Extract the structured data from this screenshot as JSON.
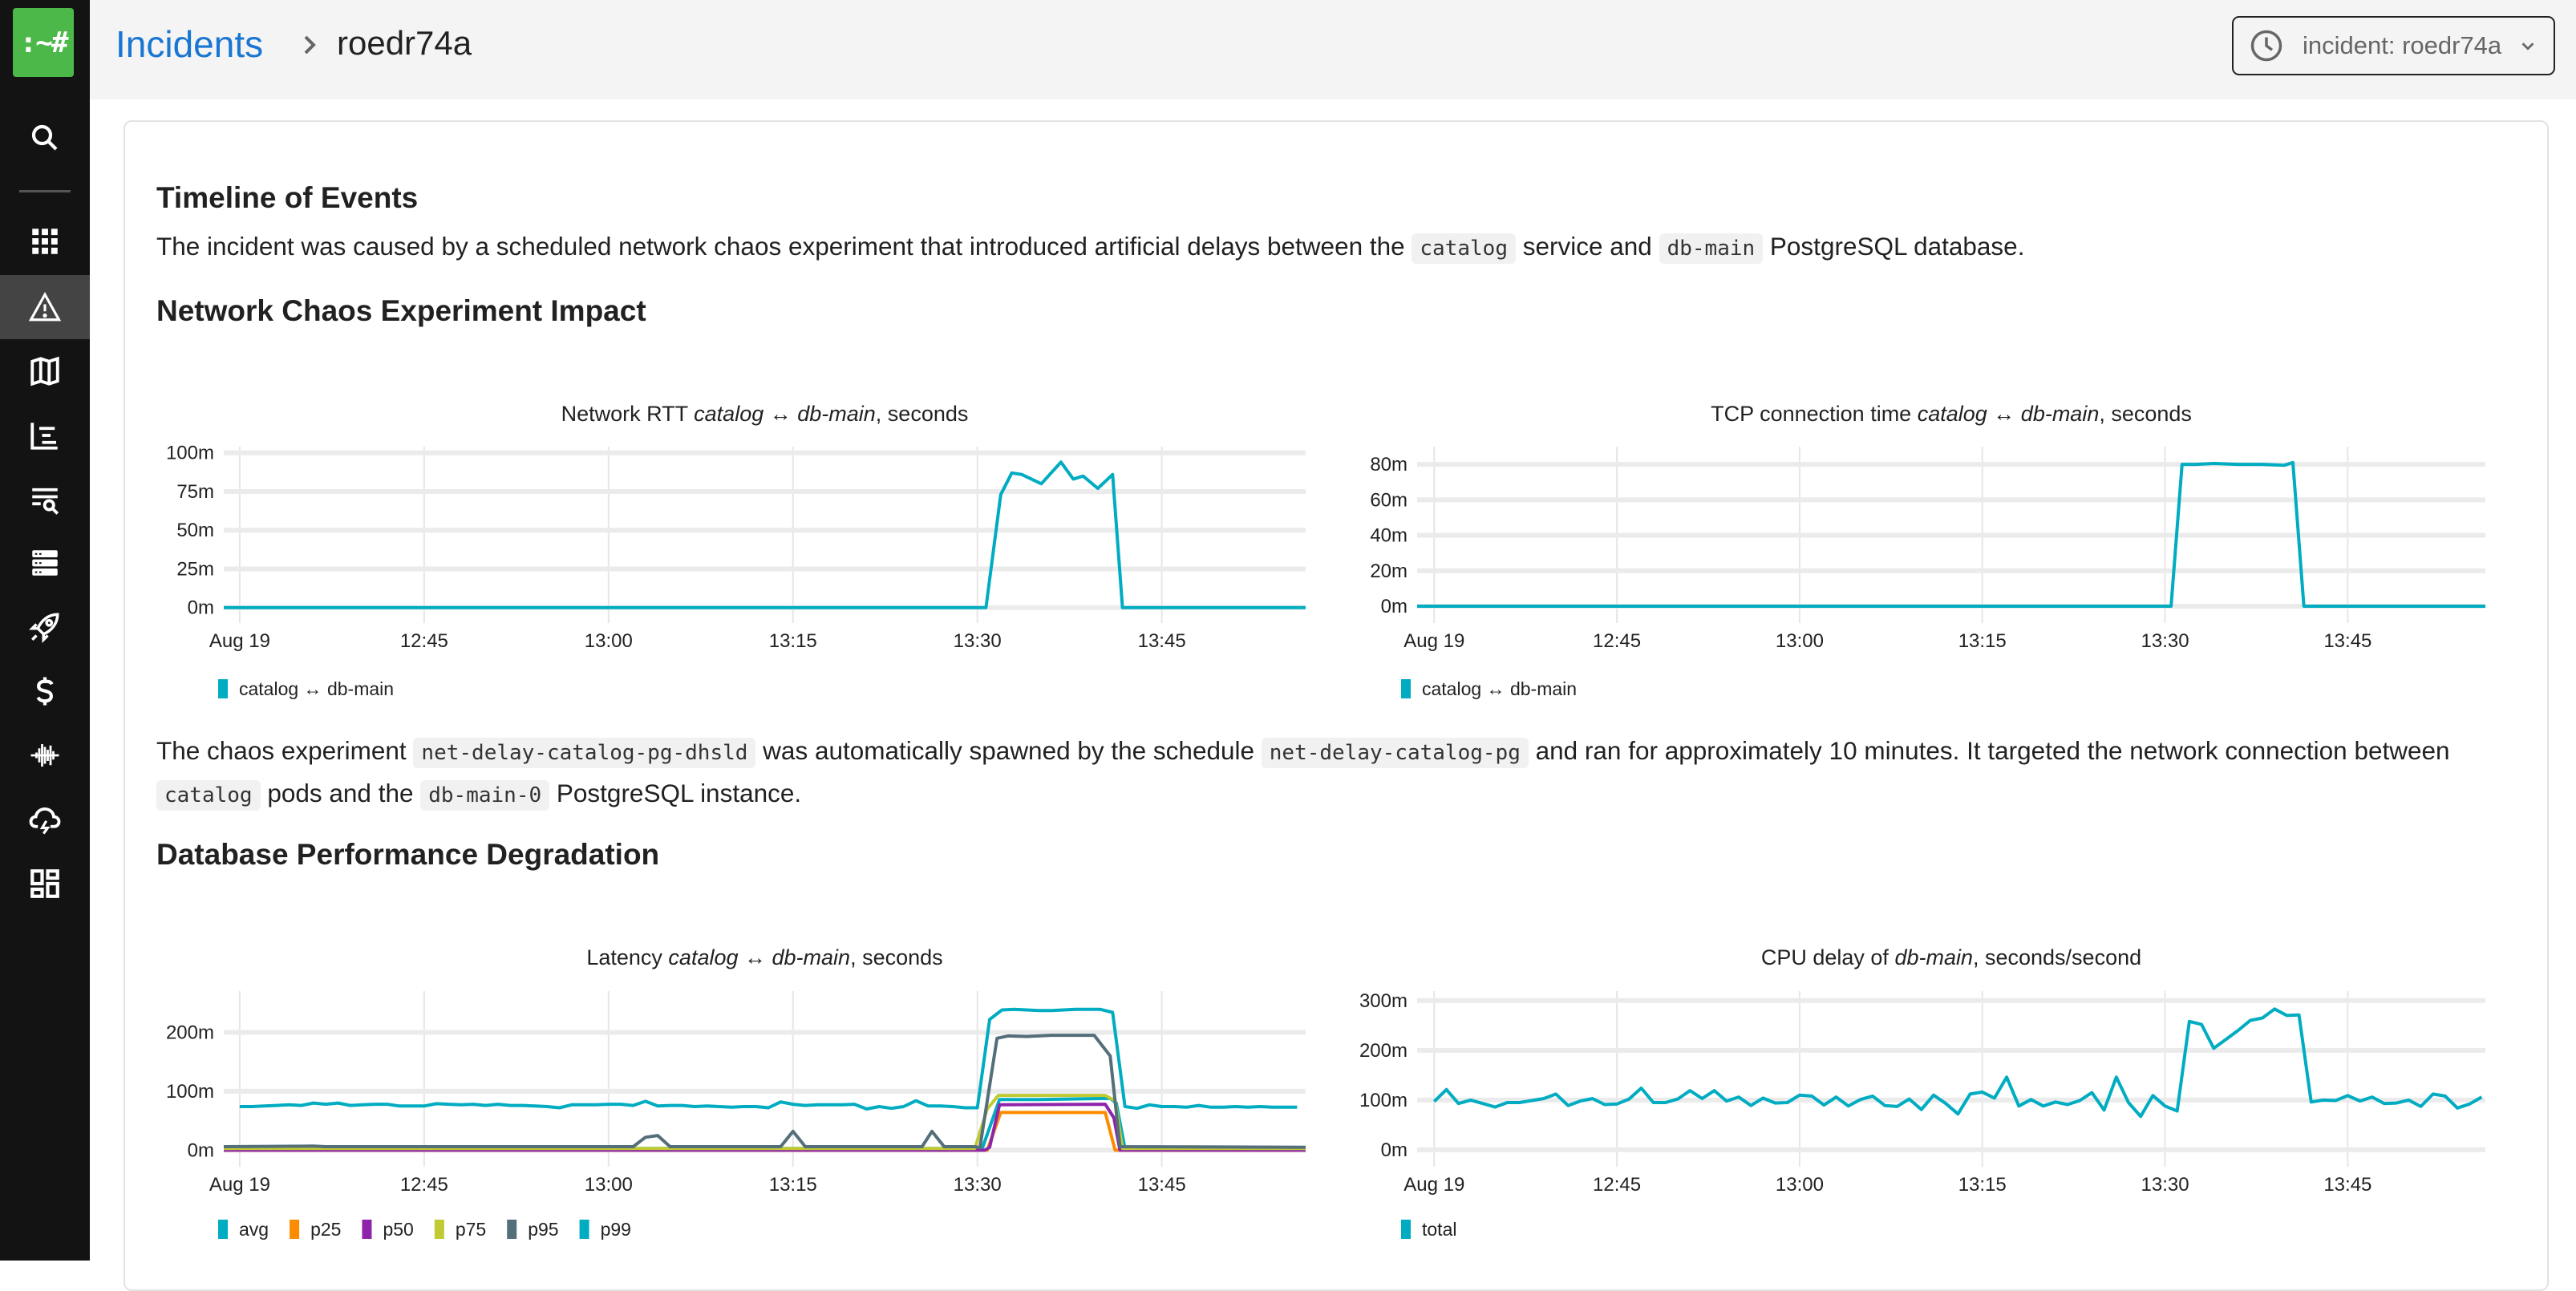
{
  "sidebar": {
    "logo_text": ":~#",
    "items": [
      {
        "icon": "search-icon"
      },
      {
        "icon": "grid-icon"
      },
      {
        "icon": "warning-icon",
        "active": true
      },
      {
        "icon": "map-icon"
      },
      {
        "icon": "timeline-list-icon"
      },
      {
        "icon": "log-search-icon"
      },
      {
        "icon": "server-icon"
      },
      {
        "icon": "rocket-icon"
      },
      {
        "icon": "dollar-icon"
      },
      {
        "icon": "waveform-icon"
      },
      {
        "icon": "cloud-lightning-icon"
      },
      {
        "icon": "dashboard-icon"
      }
    ]
  },
  "header": {
    "breadcrumb_root": "Incidents",
    "breadcrumb_current": "roedr74a",
    "time_range": "incident: roedr74a"
  },
  "content": {
    "timeline_heading": "Timeline of Events",
    "intro": {
      "t1": "The incident was caused by a scheduled network chaos experiment that introduced artificial delays between the ",
      "c1": "catalog",
      "t2": " service and ",
      "c2": "db-main",
      "t3": " PostgreSQL database."
    },
    "network_heading": "Network Chaos Experiment Impact",
    "chaos": {
      "t1": "The chaos experiment ",
      "c1": "net-delay-catalog-pg-dhsld",
      "t2": " was automatically spawned by the schedule ",
      "c2": "net-delay-catalog-pg",
      "t3": " and ran for approximately 10 minutes. It targeted the network connection between ",
      "c3": "catalog",
      "t4": " pods and the ",
      "c4": "db-main-0",
      "t5": " PostgreSQL instance."
    },
    "db_heading": "Database Performance Degradation"
  },
  "chart_data": [
    {
      "type": "line",
      "title_parts": [
        {
          "text": "Network RTT ",
          "italic": false
        },
        {
          "text": "catalog",
          "italic": true
        },
        {
          "text": " ↔ ",
          "italic": false
        },
        {
          "text": "db-main",
          "italic": true
        },
        {
          "text": ", seconds",
          "italic": false
        }
      ],
      "xlabel": "",
      "ylabel": "",
      "x_unit": "minutes since 12:30",
      "xlim": [
        -1.3,
        86.7
      ],
      "xticks": [
        {
          "x": 0,
          "label": "Aug 19"
        },
        {
          "x": 15,
          "label": "12:45"
        },
        {
          "x": 30,
          "label": "13:00"
        },
        {
          "x": 45,
          "label": "13:15"
        },
        {
          "x": 60,
          "label": "13:30"
        },
        {
          "x": 75,
          "label": "13:45"
        }
      ],
      "ylim": [
        -10,
        104
      ],
      "yticks": [
        {
          "y": 0,
          "label": "0m"
        },
        {
          "y": 25,
          "label": "25m"
        },
        {
          "y": 50,
          "label": "50m"
        },
        {
          "y": 75,
          "label": "75m"
        },
        {
          "y": 100,
          "label": "100m"
        }
      ],
      "grid": true,
      "legend": "bottom-left",
      "series": [
        {
          "name": "catalog ↔ db-main",
          "color": "#00acc1",
          "points": [
            [
              -1.3,
              0
            ],
            [
              60.7,
              0
            ],
            [
              61.9,
              73
            ],
            [
              62.8,
              87
            ],
            [
              63.6,
              86
            ],
            [
              65.2,
              80
            ],
            [
              66.8,
              94
            ],
            [
              67.8,
              83
            ],
            [
              68.6,
              85
            ],
            [
              69.8,
              77
            ],
            [
              71,
              86
            ],
            [
              71.8,
              0
            ],
            [
              86.7,
              0
            ]
          ]
        }
      ]
    },
    {
      "type": "line",
      "title_parts": [
        {
          "text": "TCP connection time ",
          "italic": false
        },
        {
          "text": "catalog",
          "italic": true
        },
        {
          "text": " ↔ ",
          "italic": false
        },
        {
          "text": "db-main",
          "italic": true
        },
        {
          "text": ", seconds",
          "italic": false
        }
      ],
      "xlabel": "",
      "ylabel": "",
      "x_unit": "minutes since 12:30",
      "xlim": [
        -1.4,
        86.3
      ],
      "xticks": [
        {
          "x": 0,
          "label": "Aug 19"
        },
        {
          "x": 15,
          "label": "12:45"
        },
        {
          "x": 30,
          "label": "13:00"
        },
        {
          "x": 45,
          "label": "13:15"
        },
        {
          "x": 60,
          "label": "13:30"
        },
        {
          "x": 75,
          "label": "13:45"
        }
      ],
      "ylim": [
        -9.5,
        90
      ],
      "yticks": [
        {
          "y": 0,
          "label": "0m"
        },
        {
          "y": 20,
          "label": "20m"
        },
        {
          "y": 40,
          "label": "40m"
        },
        {
          "y": 60,
          "label": "60m"
        },
        {
          "y": 80,
          "label": "80m"
        }
      ],
      "grid": true,
      "legend": "bottom-left",
      "series": [
        {
          "name": "catalog ↔ db-main",
          "color": "#00acc1",
          "points": [
            [
              -1.4,
              0
            ],
            [
              60.5,
              0
            ],
            [
              61.4,
              80
            ],
            [
              62.5,
              80
            ],
            [
              64,
              80.5
            ],
            [
              66,
              80
            ],
            [
              68,
              80
            ],
            [
              69.8,
              79.5
            ],
            [
              70.5,
              81
            ],
            [
              71.4,
              0
            ],
            [
              86.3,
              0
            ]
          ]
        }
      ]
    },
    {
      "type": "line",
      "title_parts": [
        {
          "text": "Latency ",
          "italic": false
        },
        {
          "text": "catalog",
          "italic": true
        },
        {
          "text": " ↔ ",
          "italic": false
        },
        {
          "text": "db-main",
          "italic": true
        },
        {
          "text": ", seconds",
          "italic": false
        }
      ],
      "xlabel": "",
      "ylabel": "",
      "x_unit": "minutes since 12:30",
      "xlim": [
        -1.3,
        86.7
      ],
      "xticks": [
        {
          "x": 0,
          "label": "Aug 19"
        },
        {
          "x": 15,
          "label": "12:45"
        },
        {
          "x": 30,
          "label": "13:00"
        },
        {
          "x": 45,
          "label": "13:15"
        },
        {
          "x": 60,
          "label": "13:30"
        },
        {
          "x": 75,
          "label": "13:45"
        }
      ],
      "ylim": [
        -28,
        270
      ],
      "yticks": [
        {
          "y": 0,
          "label": "0m"
        },
        {
          "y": 100,
          "label": "100m"
        },
        {
          "y": 200,
          "label": "200m"
        }
      ],
      "grid": true,
      "legend": "bottom-left",
      "series": [
        {
          "name": "avg",
          "color": "#00acc1",
          "points": [
            [
              -1.3,
              3
            ],
            [
              60.4,
              3
            ],
            [
              61.8,
              86
            ],
            [
              65,
              86
            ],
            [
              68,
              87
            ],
            [
              70.8,
              88
            ],
            [
              71.3,
              80
            ],
            [
              72,
              3
            ],
            [
              86.7,
              3
            ]
          ]
        },
        {
          "name": "p25",
          "color": "#fb8c00",
          "points": [
            [
              -1.3,
              0
            ],
            [
              60.8,
              0
            ],
            [
              61.9,
              64
            ],
            [
              70.4,
              64
            ],
            [
              71.2,
              0
            ],
            [
              86.7,
              0
            ]
          ]
        },
        {
          "name": "p50",
          "color": "#8e24aa",
          "points": [
            [
              -1.3,
              0
            ],
            [
              60.6,
              0
            ],
            [
              61,
              5
            ],
            [
              61.8,
              77
            ],
            [
              70.4,
              78
            ],
            [
              71.1,
              55
            ],
            [
              71.6,
              0
            ],
            [
              86.7,
              0
            ]
          ]
        },
        {
          "name": "p75",
          "color": "#c0ca33",
          "points": [
            [
              -1.3,
              3
            ],
            [
              59.8,
              3
            ],
            [
              60.8,
              70
            ],
            [
              61.7,
              93
            ],
            [
              70.4,
              93
            ],
            [
              71.2,
              84
            ],
            [
              71.8,
              3
            ],
            [
              86.7,
              3
            ]
          ]
        },
        {
          "name": "p95",
          "color": "#546e7a",
          "points": [
            [
              -1.3,
              6
            ],
            [
              6,
              7
            ],
            [
              7,
              6
            ],
            [
              32,
              6
            ],
            [
              33,
              22
            ],
            [
              34,
              25
            ],
            [
              35,
              6
            ],
            [
              44,
              6
            ],
            [
              45,
              32
            ],
            [
              46,
              6
            ],
            [
              55.5,
              6
            ],
            [
              56.3,
              32
            ],
            [
              57.3,
              6
            ],
            [
              59.8,
              6
            ],
            [
              60.2,
              4
            ],
            [
              61.6,
              190
            ],
            [
              62.5,
              194
            ],
            [
              64,
              193
            ],
            [
              66,
              195
            ],
            [
              69.5,
              195
            ],
            [
              70.8,
              160
            ],
            [
              71.6,
              6
            ],
            [
              86.7,
              5
            ]
          ]
        },
        {
          "name": "p99",
          "color": "#00acc1",
          "values": [
            74,
            74,
            75,
            76,
            77,
            76,
            80,
            78,
            80,
            76,
            77,
            78,
            78,
            75,
            75,
            75,
            79,
            78,
            77,
            78,
            76,
            78,
            76,
            76,
            75,
            74,
            72,
            77,
            77,
            77,
            78,
            78,
            76,
            83,
            75,
            76,
            76,
            74,
            75,
            74,
            73,
            74,
            74,
            72,
            82,
            78,
            76,
            77,
            77,
            77,
            78,
            70,
            74,
            71,
            74,
            84,
            75,
            75,
            74,
            72,
            72,
            222,
            238,
            239,
            238,
            237,
            237,
            238,
            239,
            239,
            239,
            234,
            74,
            71,
            77,
            74,
            74,
            73,
            76,
            73,
            73,
            74,
            73,
            74,
            73,
            73,
            73
          ]
        }
      ]
    },
    {
      "type": "line",
      "title_parts": [
        {
          "text": "CPU delay of ",
          "italic": false
        },
        {
          "text": "db-main",
          "italic": true
        },
        {
          "text": ", seconds/second",
          "italic": false
        }
      ],
      "xlabel": "",
      "ylabel": "",
      "x_unit": "minutes since 12:30",
      "xlim": [
        -1.4,
        86.3
      ],
      "xticks": [
        {
          "x": 0,
          "label": "Aug 19"
        },
        {
          "x": 15,
          "label": "12:45"
        },
        {
          "x": 30,
          "label": "13:00"
        },
        {
          "x": 45,
          "label": "13:15"
        },
        {
          "x": 60,
          "label": "13:30"
        },
        {
          "x": 75,
          "label": "13:45"
        }
      ],
      "ylim": [
        -34,
        319
      ],
      "yticks": [
        {
          "y": 0,
          "label": "0m"
        },
        {
          "y": 100,
          "label": "100m"
        },
        {
          "y": 200,
          "label": "200m"
        },
        {
          "y": 300,
          "label": "300m"
        }
      ],
      "grid": true,
      "legend": "bottom-left",
      "series": [
        {
          "name": "total",
          "color": "#00acc1",
          "values": [
            97,
            121,
            93,
            100,
            93,
            86,
            95,
            95,
            99,
            103,
            112,
            89,
            98,
            103,
            91,
            92,
            102,
            124,
            95,
            95,
            102,
            119,
            103,
            119,
            98,
            106,
            89,
            104,
            94,
            95,
            110,
            108,
            90,
            106,
            88,
            101,
            108,
            89,
            87,
            102,
            81,
            110,
            93,
            72,
            112,
            116,
            104,
            146,
            88,
            101,
            88,
            96,
            91,
            99,
            115,
            80,
            146,
            95,
            67,
            109,
            88,
            78,
            258,
            252,
            204,
            222,
            240,
            260,
            265,
            283,
            270,
            271,
            96,
            100,
            99,
            109,
            98,
            106,
            93,
            94,
            100,
            87,
            112,
            108,
            84,
            92,
            106
          ]
        }
      ]
    }
  ]
}
